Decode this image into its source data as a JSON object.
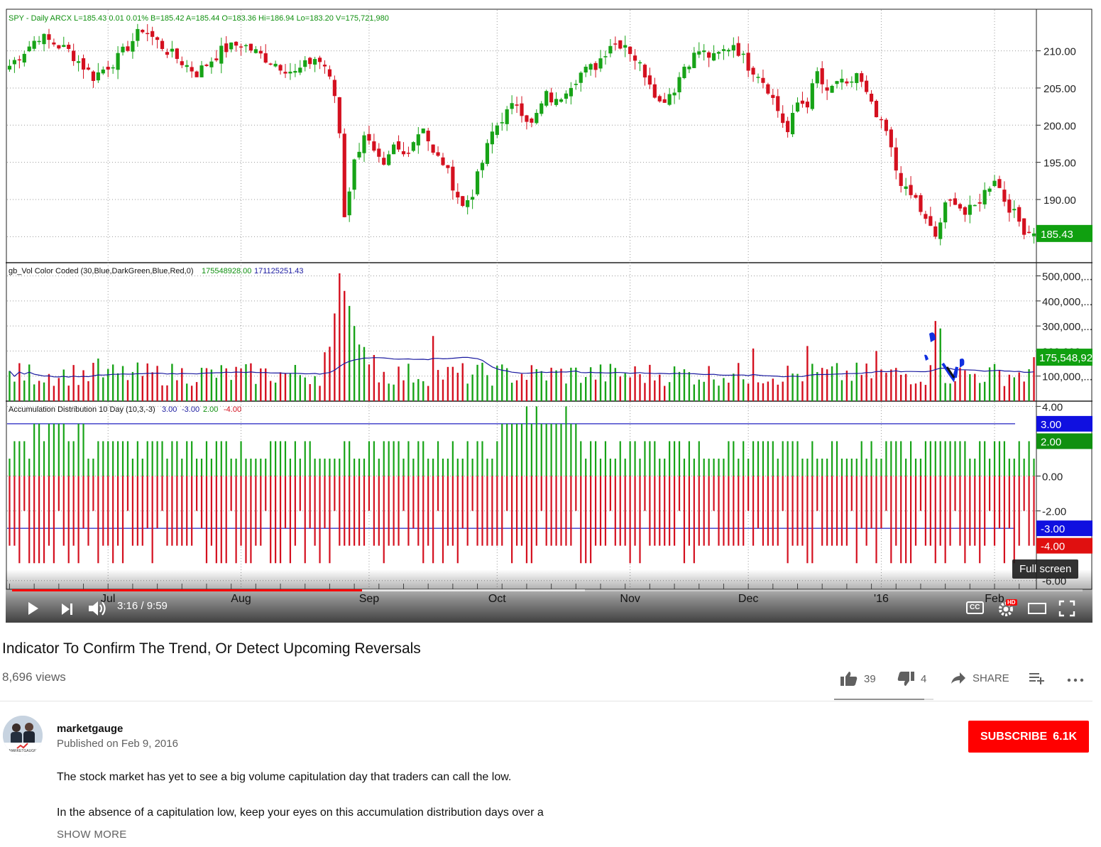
{
  "player": {
    "time": "3:16 / 9:59",
    "progress_fraction": 0.327,
    "buffer_fraction": 0.535,
    "tooltip": "Full screen",
    "cc_label": "CC",
    "hd_badge": "HD",
    "icons": [
      "play-icon",
      "next-icon",
      "volume-icon",
      "captions-icon",
      "settings-icon",
      "theater-mode-icon",
      "fullscreen-icon"
    ]
  },
  "chart_data": {
    "type": "candlestick",
    "price_panel": {
      "header": "SPY - Daily  ARCX  L=185.43  0.01   0.01%   B=185.42  A=185.44  O=183.36  Hi=186.94  Lo=183.20  V=175,721,980",
      "y_ticks": [
        "210.00",
        "205.00",
        "200.00",
        "195.00",
        "190.00"
      ],
      "y_tick_values": [
        210,
        205,
        200,
        195,
        190
      ],
      "ylim": [
        181.5,
        215.5
      ],
      "last_price_label": "185.43",
      "last_price": 185.43,
      "anchors": [
        [
          0,
          208
        ],
        [
          6,
          212
        ],
        [
          12,
          210
        ],
        [
          17,
          206.5
        ],
        [
          22,
          209
        ],
        [
          27,
          213
        ],
        [
          32,
          210
        ],
        [
          38,
          207
        ],
        [
          43,
          210
        ],
        [
          47,
          211
        ],
        [
          52,
          209
        ],
        [
          58,
          207
        ],
        [
          62,
          209
        ],
        [
          64,
          208
        ],
        [
          66,
          204
        ],
        [
          67,
          199
        ],
        [
          68,
          188
        ],
        [
          70,
          195
        ],
        [
          72,
          199
        ],
        [
          74,
          196
        ],
        [
          76,
          194
        ],
        [
          78,
          197
        ],
        [
          80,
          196
        ],
        [
          82,
          198
        ],
        [
          84,
          200
        ],
        [
          86,
          196
        ],
        [
          88,
          195
        ],
        [
          90,
          192
        ],
        [
          92,
          189
        ],
        [
          94,
          191
        ],
        [
          96,
          195
        ],
        [
          98,
          199
        ],
        [
          100,
          201
        ],
        [
          103,
          203
        ],
        [
          106,
          200
        ],
        [
          109,
          204
        ],
        [
          111,
          203
        ],
        [
          113,
          205
        ],
        [
          116,
          207
        ],
        [
          119,
          208
        ],
        [
          122,
          211
        ],
        [
          125,
          211
        ],
        [
          128,
          208
        ],
        [
          130,
          206
        ],
        [
          132,
          203
        ],
        [
          135,
          205
        ],
        [
          137,
          208
        ],
        [
          140,
          210
        ],
        [
          143,
          209
        ],
        [
          145,
          210
        ],
        [
          147,
          211
        ],
        [
          150,
          208
        ],
        [
          152,
          207
        ],
        [
          154,
          205
        ],
        [
          156,
          202
        ],
        [
          158,
          199
        ],
        [
          160,
          203
        ],
        [
          162,
          203
        ],
        [
          164,
          207
        ],
        [
          166,
          204
        ],
        [
          168,
          206
        ],
        [
          170,
          205
        ],
        [
          172,
          207
        ],
        [
          174,
          204
        ],
        [
          176,
          201
        ],
        [
          178,
          199
        ],
        [
          180,
          194
        ],
        [
          182,
          191
        ],
        [
          184,
          190
        ],
        [
          186,
          187
        ],
        [
          188,
          185
        ],
        [
          190,
          189
        ],
        [
          192,
          190
        ],
        [
          194,
          188
        ],
        [
          196,
          189
        ],
        [
          198,
          191
        ],
        [
          200,
          193
        ],
        [
          202,
          190
        ],
        [
          204,
          188
        ],
        [
          206,
          186
        ],
        [
          208,
          185.4
        ]
      ]
    },
    "volume_panel": {
      "header": "gb_Vol Color Coded (30,Blue,DarkGreen,Blue,Red,0)",
      "header_values": [
        "175548928.00",
        "171125251.43"
      ],
      "y_ticks": [
        "500,000,...",
        "400,000,...",
        "300,000,...",
        "200,000,...",
        "100,000,..."
      ],
      "y_tick_values": [
        500000000,
        400000000,
        300000000,
        200000000,
        100000000
      ],
      "ylim": [
        0,
        530000000
      ],
      "last_volume_label": "175,548,92",
      "last_volume": 175548928,
      "spikes": [
        [
          18,
          170000000
        ],
        [
          66,
          350000000
        ],
        [
          67,
          510000000
        ],
        [
          68,
          440000000
        ],
        [
          69,
          380000000
        ],
        [
          70,
          300000000
        ],
        [
          86,
          260000000
        ],
        [
          151,
          210000000
        ],
        [
          162,
          220000000
        ],
        [
          176,
          200000000
        ],
        [
          188,
          320000000
        ],
        [
          189,
          290000000
        ]
      ]
    },
    "ad_panel": {
      "header": "Accumulation Distribution 10 Day (10,3,-3)",
      "header_values": [
        "3.00",
        "-3.00",
        "2.00",
        "-4.00"
      ],
      "y_ticks": [
        "4.00",
        "0.00",
        "-2.00"
      ],
      "y_tick_values": [
        4,
        0,
        -2
      ],
      "ylim": [
        -6.5,
        4.3
      ],
      "markers": [
        {
          "label": "3.00",
          "value": 3,
          "color": "#1010e0"
        },
        {
          "label": "2.00",
          "value": 2,
          "color": "#109010"
        },
        {
          "label": "-3.00",
          "value": -3,
          "color": "#1010e0"
        },
        {
          "label": "-4.00",
          "value": -4,
          "color": "#e01010"
        }
      ],
      "partial_tick": "-6.00"
    },
    "x_axis": {
      "labels": [
        "Jul",
        "Aug",
        "Sep",
        "Oct",
        "Nov",
        "Dec",
        "'16",
        "Feb"
      ],
      "label_bars": [
        20,
        47,
        73,
        99,
        126,
        150,
        177,
        200
      ]
    },
    "num_bars": 209,
    "colors": {
      "up": "#17a317",
      "down": "#d4101f",
      "ma": "#1a1aa0",
      "grid": "#9a9a9a",
      "ref_line": "#2020c0"
    }
  },
  "video": {
    "title": "Indicator To Confirm The Trend, Or Detect Upcoming Reversals",
    "views": "8,696 views",
    "likes": "39",
    "dislikes": "4",
    "share_label": "SHARE"
  },
  "channel": {
    "name": "marketgauge",
    "published": "Published on Feb 9, 2016",
    "subscribe_label": "SUBSCRIBE",
    "subscriber_count": "6.1K",
    "logo_text": "MARKETGAUGE"
  },
  "description": {
    "line1": "The stock market has yet to see a big volume capitulation day that traders can call the low.",
    "line2": "In the absence of a capitulation low, keep your eyes on this accumulation distribution days over a",
    "show_more": "SHOW MORE"
  }
}
